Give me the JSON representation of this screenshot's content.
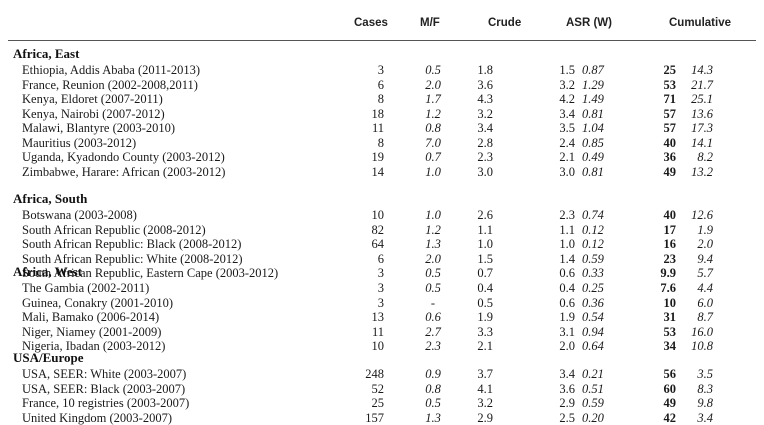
{
  "header": {
    "cases": "Cases",
    "mf": "M/F",
    "crude": "Crude",
    "asr": "ASR (W)",
    "cumulative": "Cumulative"
  },
  "groups": [
    {
      "title": "Africa, East",
      "rows": [
        {
          "label": "Ethiopia, Addis Ababa (2011-2013)",
          "cases": "3",
          "mf": "0.5",
          "crude": "1.8",
          "asr": "1.5",
          "asr_se": "0.87",
          "cum": "25",
          "cum_se": "14.3"
        },
        {
          "label": "France, Reunion (2002-2008,2011)",
          "cases": "6",
          "mf": "2.0",
          "crude": "3.6",
          "asr": "3.2",
          "asr_se": "1.29",
          "cum": "53",
          "cum_se": "21.7"
        },
        {
          "label": "Kenya, Eldoret (2007-2011)",
          "cases": "8",
          "mf": "1.7",
          "crude": "4.3",
          "asr": "4.2",
          "asr_se": "1.49",
          "cum": "71",
          "cum_se": "25.1"
        },
        {
          "label": "Kenya, Nairobi (2007-2012)",
          "cases": "18",
          "mf": "1.2",
          "crude": "3.2",
          "asr": "3.4",
          "asr_se": "0.81",
          "cum": "57",
          "cum_se": "13.6"
        },
        {
          "label": "Malawi, Blantyre (2003-2010)",
          "cases": "11",
          "mf": "0.8",
          "crude": "3.4",
          "asr": "3.5",
          "asr_se": "1.04",
          "cum": "57",
          "cum_se": "17.3"
        },
        {
          "label": "Mauritius (2003-2012)",
          "cases": "8",
          "mf": "7.0",
          "crude": "2.8",
          "asr": "2.4",
          "asr_se": "0.85",
          "cum": "40",
          "cum_se": "14.1"
        },
        {
          "label": "Uganda, Kyadondo County (2003-2012)",
          "cases": "19",
          "mf": "0.7",
          "crude": "2.3",
          "asr": "2.1",
          "asr_se": "0.49",
          "cum": "36",
          "cum_se": "8.2"
        },
        {
          "label": "Zimbabwe, Harare: African (2003-2012)",
          "cases": "14",
          "mf": "1.0",
          "crude": "3.0",
          "asr": "3.0",
          "asr_se": "0.81",
          "cum": "49",
          "cum_se": "13.2"
        }
      ]
    },
    {
      "title": "Africa, South",
      "rows": [
        {
          "label": "Botswana (2003-2008)",
          "cases": "10",
          "mf": "1.0",
          "crude": "2.6",
          "asr": "2.3",
          "asr_se": "0.74",
          "cum": "40",
          "cum_se": "12.6"
        },
        {
          "label": "South African Republic (2008-2012)",
          "cases": "82",
          "mf": "1.2",
          "crude": "1.1",
          "asr": "1.1",
          "asr_se": "0.12",
          "cum": "17",
          "cum_se": "1.9"
        },
        {
          "label": "South African Republic: Black (2008-2012)",
          "cases": "64",
          "mf": "1.3",
          "crude": "1.0",
          "asr": "1.0",
          "asr_se": "0.12",
          "cum": "16",
          "cum_se": "2.0"
        },
        {
          "label": "South African Republic: White (2008-2012)",
          "cases": "6",
          "mf": "2.0",
          "crude": "1.5",
          "asr": "1.4",
          "asr_se": "0.59",
          "cum": "23",
          "cum_se": "9.4"
        },
        {
          "label": "South African Republic, Eastern Cape (2003-2012)",
          "cases": "3",
          "mf": "0.5",
          "crude": "0.7",
          "asr": "0.6",
          "asr_se": "0.33",
          "cum": "9.9",
          "cum_se": "5.7"
        }
      ]
    },
    {
      "title": "Africa, West",
      "rows": [
        {
          "label": "The Gambia (2002-2011)",
          "cases": "3",
          "mf": "0.5",
          "crude": "0.4",
          "asr": "0.4",
          "asr_se": "0.25",
          "cum": "7.6",
          "cum_se": "4.4"
        },
        {
          "label": "Guinea, Conakry (2001-2010)",
          "cases": "3",
          "mf": "-",
          "crude": "0.5",
          "asr": "0.6",
          "asr_se": "0.36",
          "cum": "10",
          "cum_se": "6.0"
        },
        {
          "label": "Mali, Bamako (2006-2014)",
          "cases": "13",
          "mf": "0.6",
          "crude": "1.9",
          "asr": "1.9",
          "asr_se": "0.54",
          "cum": "31",
          "cum_se": "8.7"
        },
        {
          "label": "Niger, Niamey (2001-2009)",
          "cases": "11",
          "mf": "2.7",
          "crude": "3.3",
          "asr": "3.1",
          "asr_se": "0.94",
          "cum": "53",
          "cum_se": "16.0"
        },
        {
          "label": "Nigeria, Ibadan (2003-2012)",
          "cases": "10",
          "mf": "2.3",
          "crude": "2.1",
          "asr": "2.0",
          "asr_se": "0.64",
          "cum": "34",
          "cum_se": "10.8"
        }
      ]
    },
    {
      "title": "USA/Europe",
      "rows": [
        {
          "label": "USA, SEER: White (2003-2007)",
          "cases": "248",
          "mf": "0.9",
          "crude": "3.7",
          "asr": "3.4",
          "asr_se": "0.21",
          "cum": "56",
          "cum_se": "3.5"
        },
        {
          "label": "USA, SEER: Black (2003-2007)",
          "cases": "52",
          "mf": "0.8",
          "crude": "4.1",
          "asr": "3.6",
          "asr_se": "0.51",
          "cum": "60",
          "cum_se": "8.3"
        },
        {
          "label": "France, 10 registries (2003-2007)",
          "cases": "25",
          "mf": "0.5",
          "crude": "3.2",
          "asr": "2.9",
          "asr_se": "0.59",
          "cum": "49",
          "cum_se": "9.8"
        },
        {
          "label": "United Kingdom (2003-2007)",
          "cases": "157",
          "mf": "1.3",
          "crude": "2.9",
          "asr": "2.5",
          "asr_se": "0.20",
          "cum": "42",
          "cum_se": "3.4"
        }
      ]
    }
  ]
}
